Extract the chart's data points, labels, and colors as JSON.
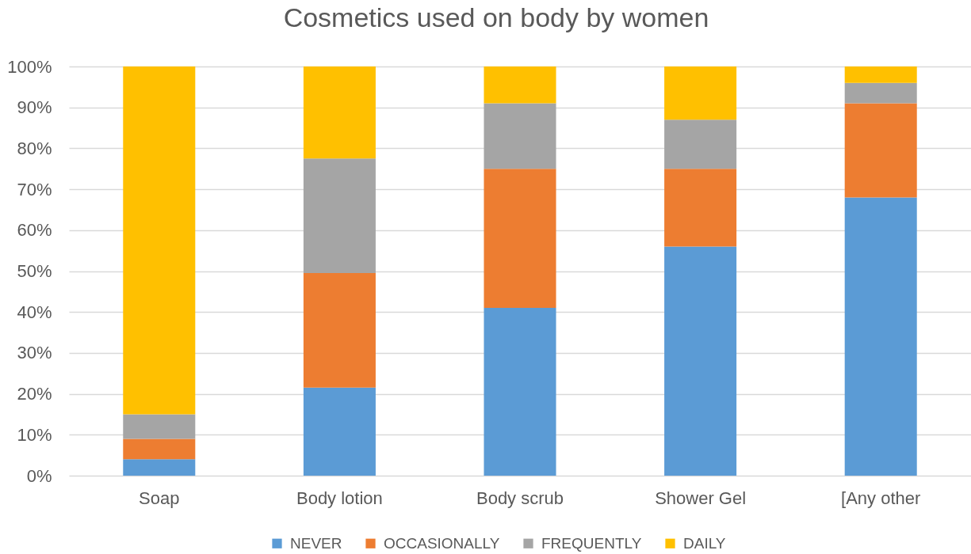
{
  "chart_data": {
    "type": "bar",
    "title": "Cosmetics used on body by women",
    "categories": [
      "Soap",
      "Body lotion",
      "Body scrub",
      "Shower Gel",
      "[Any other"
    ],
    "stacked": true,
    "series": [
      {
        "name": "NEVER",
        "color": "#5b9bd5",
        "values": [
          4,
          21.5,
          41,
          56,
          68
        ]
      },
      {
        "name": "OCCASIONALLY",
        "color": "#ed7d31",
        "values": [
          5,
          28,
          34,
          19,
          23
        ]
      },
      {
        "name": "FREQUENTLY",
        "color": "#a5a5a5",
        "values": [
          6,
          28,
          16,
          12,
          5
        ]
      },
      {
        "name": "DAILY",
        "color": "#ffc000",
        "values": [
          85,
          22.5,
          9,
          13,
          4
        ]
      }
    ],
    "ylim": [
      0,
      100
    ],
    "yticks": [
      {
        "value": 0,
        "label": "0%"
      },
      {
        "value": 10,
        "label": "10%"
      },
      {
        "value": 20,
        "label": "20%"
      },
      {
        "value": 30,
        "label": "30%"
      },
      {
        "value": 40,
        "label": "40%"
      },
      {
        "value": 50,
        "label": "50%"
      },
      {
        "value": 60,
        "label": "60%"
      },
      {
        "value": 70,
        "label": "70%"
      },
      {
        "value": 80,
        "label": "80%"
      },
      {
        "value": 90,
        "label": "90%"
      },
      {
        "value": 100,
        "label": "100%"
      }
    ],
    "grid": "y",
    "legend": "bottom"
  }
}
